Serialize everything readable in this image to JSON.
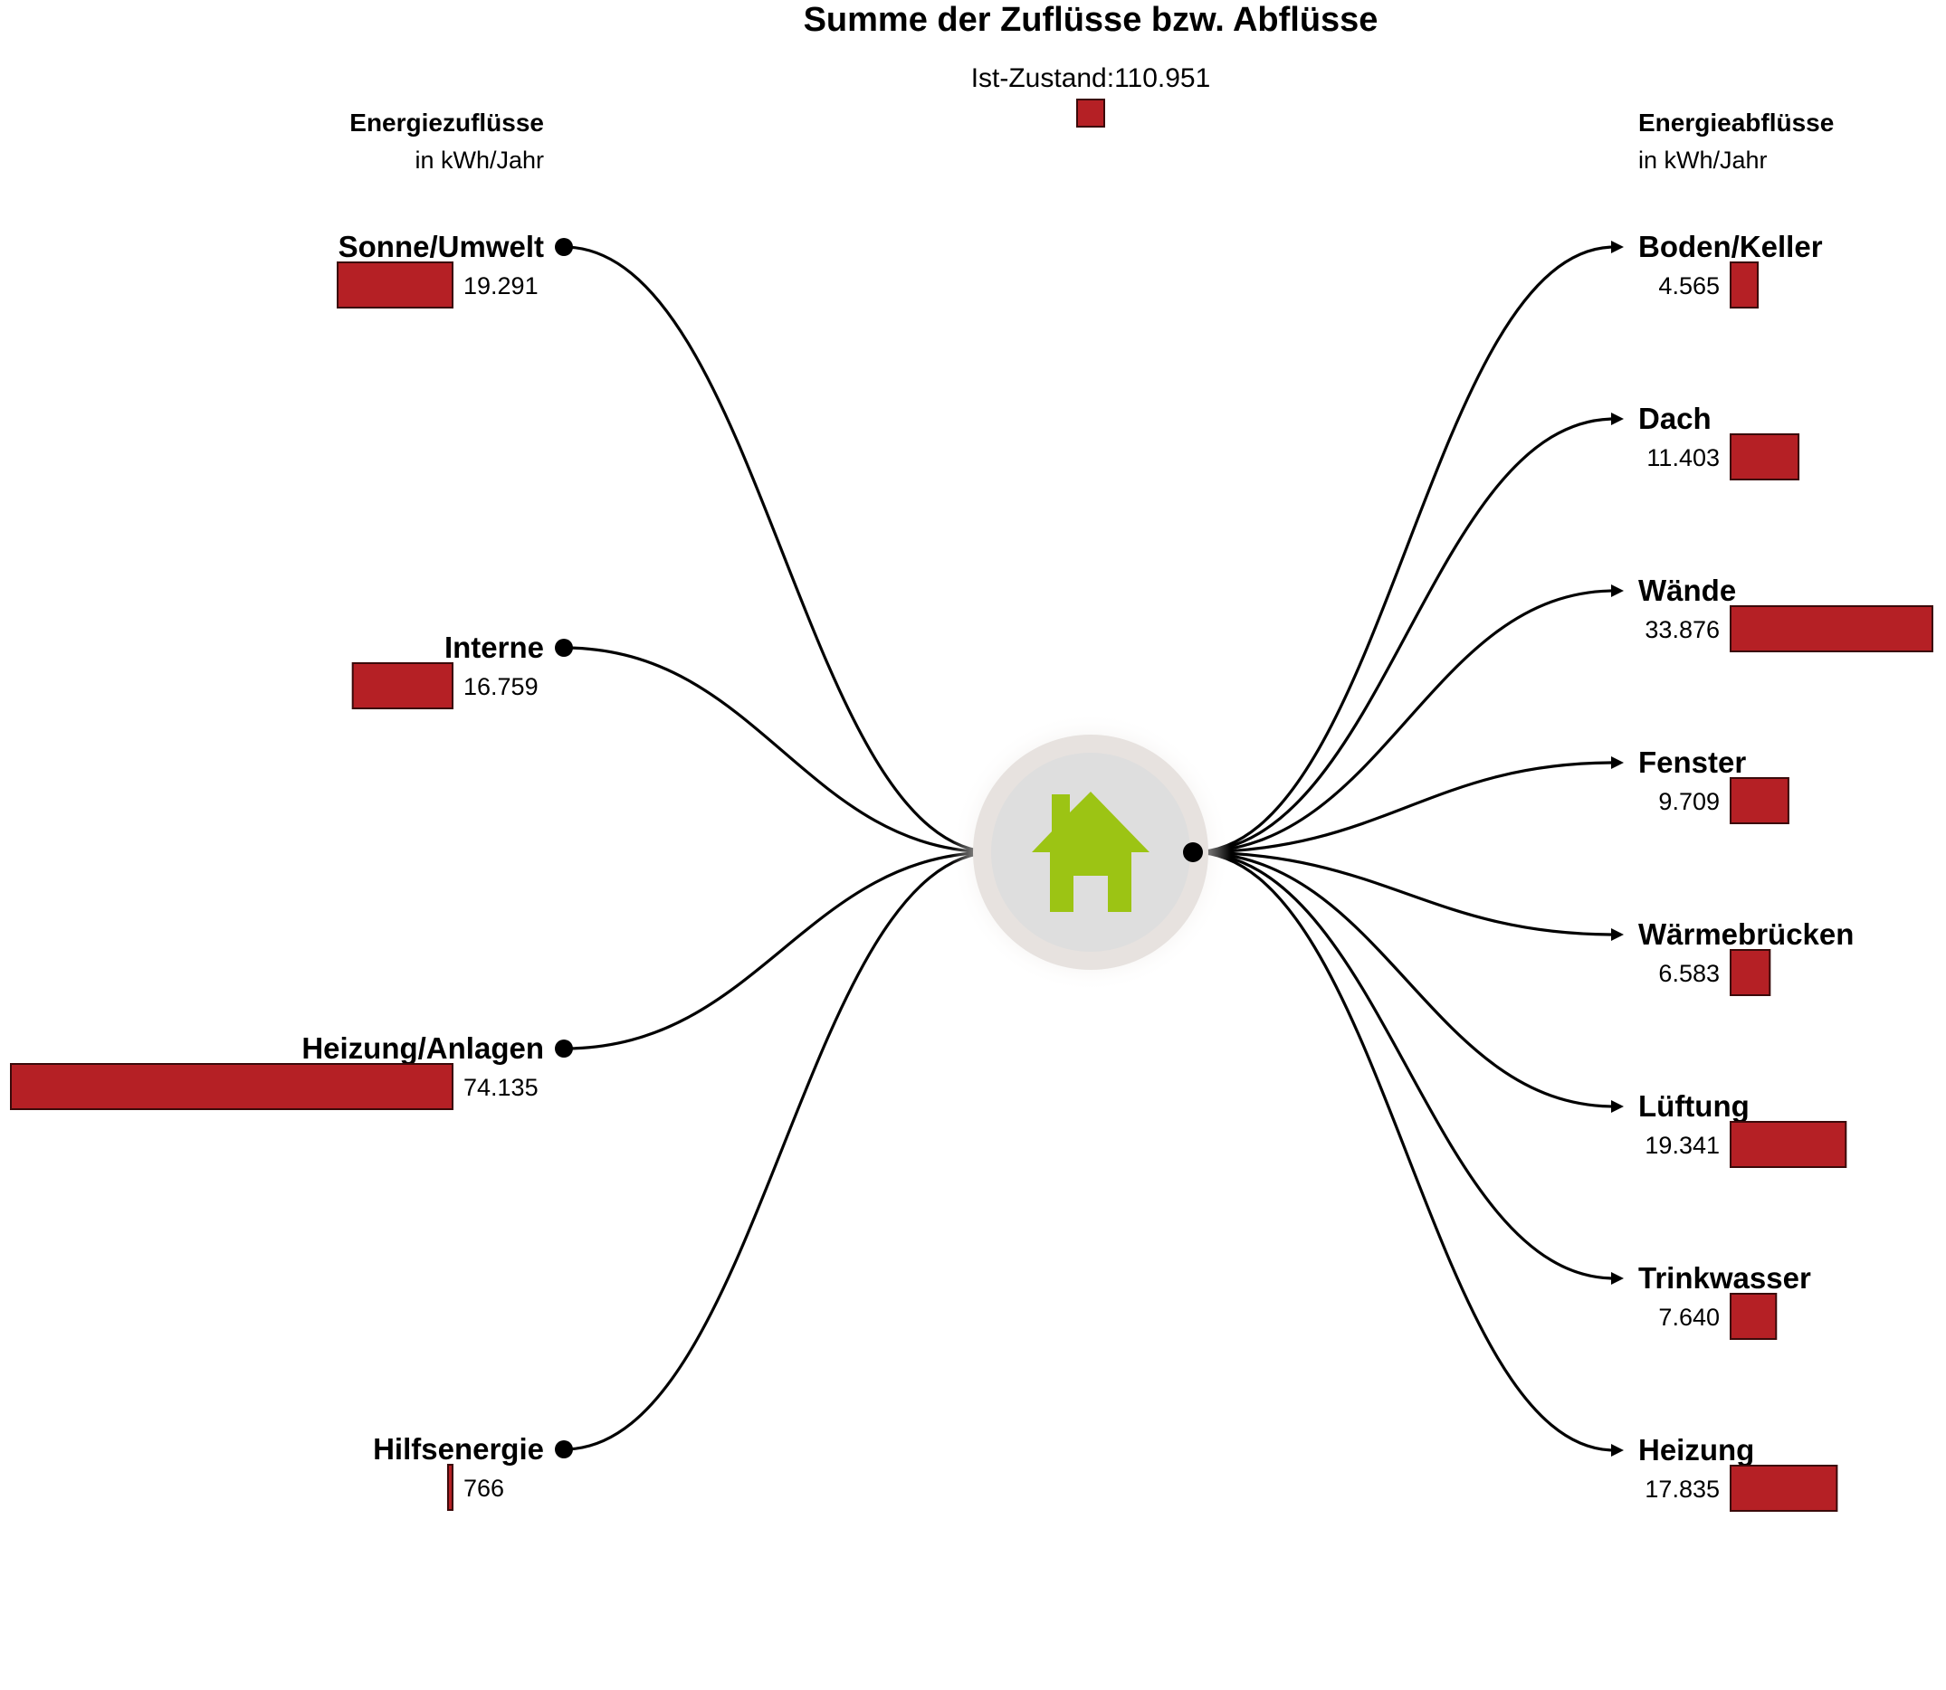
{
  "title": "Summe der Zuflüsse bzw. Abflüsse",
  "subtitle": "Ist-Zustand:110.951",
  "colors": {
    "bar": "#b52025",
    "icon": "#9cc414",
    "link": "#000000"
  },
  "center_icon": "house-icon",
  "inflows": {
    "header": "Energiezuflüsse",
    "unit": "in kWh/Jahr",
    "items": [
      {
        "label": "Sonne/Umwelt",
        "value_text": "19.291",
        "value": 19291
      },
      {
        "label": "Interne",
        "value_text": "16.759",
        "value": 16759
      },
      {
        "label": "Heizung/Anlagen",
        "value_text": "74.135",
        "value": 74135
      },
      {
        "label": "Hilfsenergie",
        "value_text": "766",
        "value": 766
      }
    ]
  },
  "outflows": {
    "header": "Energieabflüsse",
    "unit": "in kWh/Jahr",
    "items": [
      {
        "label": "Boden/Keller",
        "value_text": "4.565",
        "value": 4565
      },
      {
        "label": "Dach",
        "value_text": "11.403",
        "value": 11403
      },
      {
        "label": "Wände",
        "value_text": "33.876",
        "value": 33876
      },
      {
        "label": "Fenster",
        "value_text": "9.709",
        "value": 9709
      },
      {
        "label": "Wärmebrücken",
        "value_text": "6.583",
        "value": 6583
      },
      {
        "label": "Lüftung",
        "value_text": "19.341",
        "value": 19341
      },
      {
        "label": "Trinkwasser",
        "value_text": "7.640",
        "value": 7640
      },
      {
        "label": "Heizung",
        "value_text": "17.835",
        "value": 17835
      }
    ]
  }
}
